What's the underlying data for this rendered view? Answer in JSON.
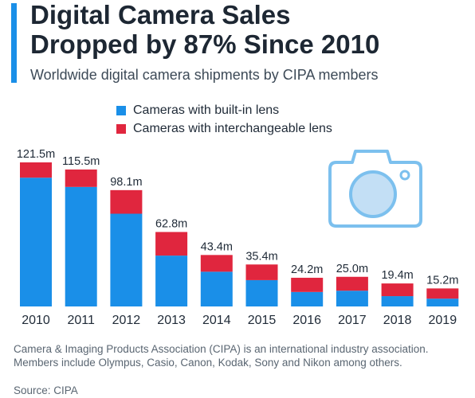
{
  "header": {
    "title_line1": "Digital Camera Sales",
    "title_line2": "Dropped by 87% Since 2010",
    "subtitle": "Worldwide digital camera shipments by CIPA members"
  },
  "colors": {
    "accent": "#1a8fe8",
    "builtin": "#1a8fe8",
    "interchangeable": "#e0263e",
    "icon": "#7cc0ee"
  },
  "chart_data": {
    "type": "bar",
    "stacked": true,
    "categories": [
      "2010",
      "2011",
      "2012",
      "2013",
      "2014",
      "2015",
      "2016",
      "2017",
      "2018",
      "2019"
    ],
    "series": [
      {
        "name": "Cameras with built-in lens",
        "values": [
          108.6,
          100.8,
          78.2,
          42.9,
          29.3,
          22.2,
          12.2,
          13.3,
          8.7,
          6.6
        ]
      },
      {
        "name": "Cameras with interchangeable lens",
        "values": [
          12.9,
          14.7,
          19.9,
          19.9,
          14.1,
          13.2,
          12.0,
          11.7,
          10.7,
          8.6
        ]
      }
    ],
    "total_labels": [
      "121.5m",
      "115.5m",
      "98.1m",
      "62.8m",
      "43.4m",
      "35.4m",
      "24.2m",
      "25.0m",
      "19.4m",
      "15.2m"
    ],
    "totals": [
      121.5,
      115.5,
      98.1,
      62.8,
      43.4,
      35.4,
      24.2,
      25.0,
      19.4,
      15.2
    ],
    "ylim": [
      0,
      121.5
    ],
    "legend_position": "top-left",
    "grid": false,
    "title": "Digital Camera Sales Dropped by 87% Since 2010",
    "subtitle": "Worldwide digital camera shipments by CIPA members",
    "xlabel": "",
    "ylabel": ""
  },
  "footer": {
    "note": "Camera & Imaging Products Association (CIPA) is an international industry association. Members include Olympus, Casio, Canon, Kodak, Sony and Nikon among others.",
    "source": "Source: CIPA"
  },
  "icons": {
    "camera": "camera-icon"
  }
}
